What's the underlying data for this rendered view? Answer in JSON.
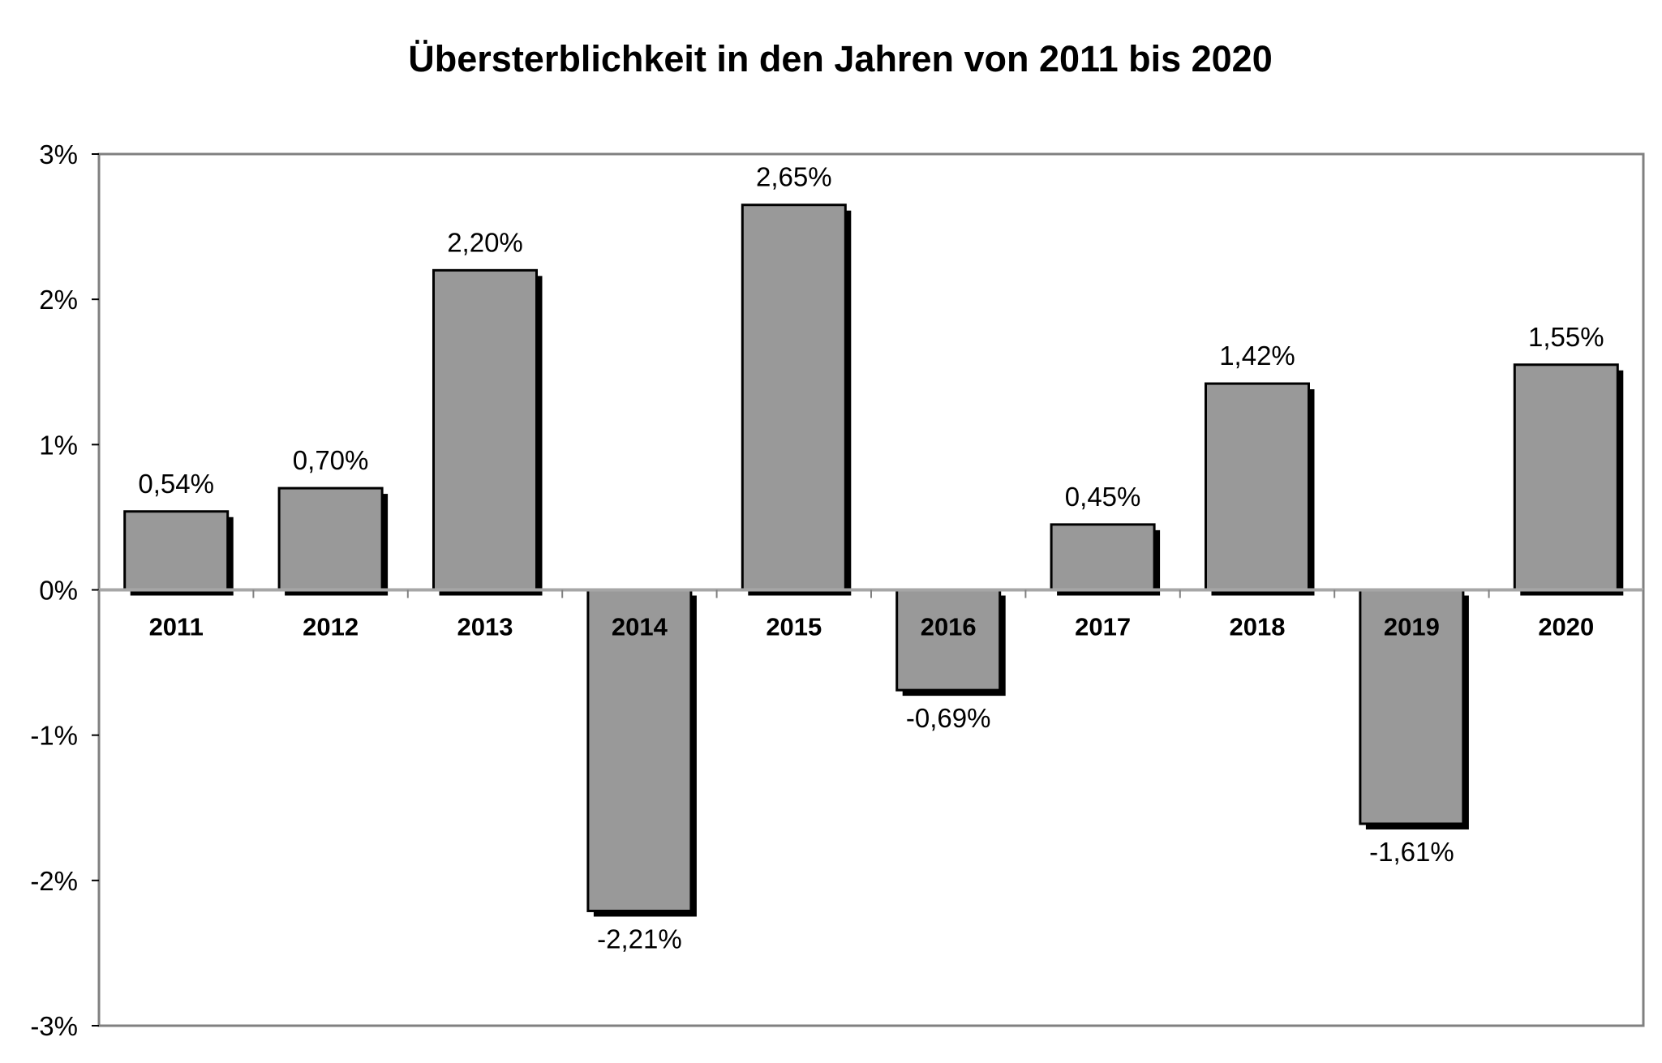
{
  "chart_data": {
    "type": "bar",
    "title": "Übersterblichkeit in den Jahren von 2011 bis 2020",
    "xlabel": "",
    "ylabel": "",
    "categories": [
      "2011",
      "2012",
      "2013",
      "2014",
      "2015",
      "2016",
      "2017",
      "2018",
      "2019",
      "2020"
    ],
    "values": [
      0.54,
      0.7,
      2.2,
      -2.21,
      2.65,
      -0.69,
      0.45,
      1.42,
      -1.61,
      1.55
    ],
    "value_labels": [
      "0,54%",
      "0,70%",
      "2,20%",
      "-2,21%",
      "2,65%",
      "-0,69%",
      "0,45%",
      "1,42%",
      "-1,61%",
      "1,55%"
    ],
    "ylim": [
      -3,
      3
    ],
    "yticks": [
      3,
      2,
      1,
      0,
      -1,
      -2,
      -3
    ],
    "ytick_labels": [
      "3%",
      "2%",
      "1%",
      "0%",
      "-1%",
      "-2%",
      "-3%"
    ],
    "grid": false,
    "legend": "none",
    "colors": {
      "bar_fill": "#999999",
      "bar_stroke": "#000000",
      "bar_shadow": "#000000",
      "frame": "#808080",
      "zero_line": "#a6a6a6"
    }
  }
}
